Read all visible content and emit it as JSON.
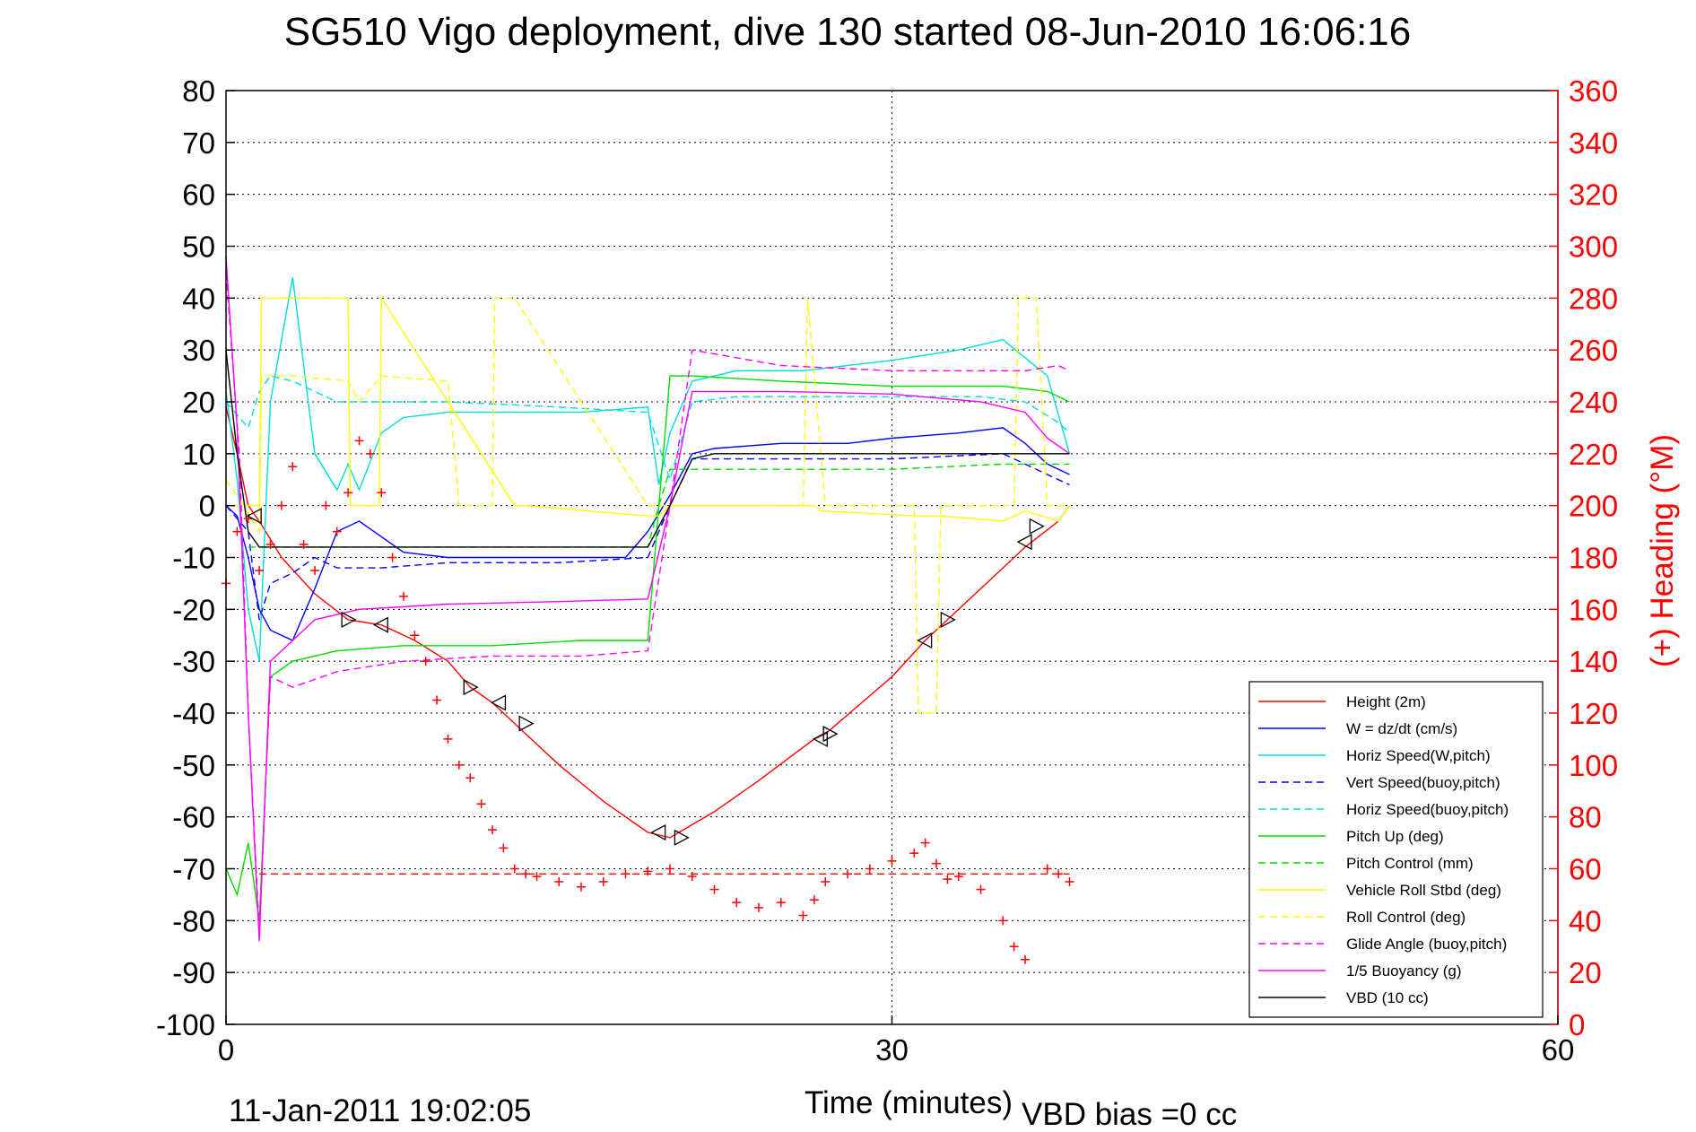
{
  "chart_data": {
    "type": "line",
    "title": "SG510 Vigo deployment, dive 130 started 08-Jun-2010 16:06:16",
    "xlabel": "Time (minutes)",
    "ylabel_right": "(+) Heading (°M)",
    "xlim": [
      0,
      60
    ],
    "ylim_left": [
      -100,
      80
    ],
    "ylim_right": [
      0,
      360
    ],
    "x_ticks": [
      "0",
      "30",
      "60"
    ],
    "y_ticks_left": [
      "80",
      "70",
      "60",
      "50",
      "40",
      "30",
      "20",
      "10",
      "0",
      "-10",
      "-20",
      "-30",
      "-40",
      "-50",
      "-60",
      "-70",
      "-80",
      "-90",
      "-100"
    ],
    "y_ticks_right": [
      "360",
      "340",
      "320",
      "300",
      "280",
      "260",
      "240",
      "220",
      "200",
      "180",
      "160",
      "140",
      "120",
      "100",
      "80",
      "60",
      "40",
      "20",
      "0"
    ],
    "grid": "dotted",
    "legend_position": "bottom-right",
    "footer_left": "11-Jan-2011 19:02:05",
    "footer_right": "VBD bias =0 cc",
    "series": [
      {
        "name": "Height (2m)",
        "color": "#ff0000",
        "dash": "solid",
        "axis": "left",
        "x": [
          0,
          0.5,
          1.0,
          1.5,
          2.5,
          4,
          5.5,
          7,
          8.5,
          10,
          11,
          12,
          13,
          15,
          17,
          19,
          20,
          22,
          24,
          26.5,
          27,
          30,
          31.5,
          32.5,
          35,
          36,
          37.5,
          38
        ],
        "y": [
          19,
          10,
          0,
          -3,
          -10,
          -17,
          -22,
          -23,
          -26,
          -30,
          -35,
          -38,
          -42,
          -50,
          -57,
          -63,
          -64,
          -59,
          -53,
          -45,
          -44,
          -33,
          -26,
          -22,
          -12,
          -8,
          -3,
          0
        ]
      },
      {
        "name": "W = dz/dt (cm/s)",
        "color": "#0000ff",
        "dash": "solid",
        "axis": "left",
        "x": [
          0,
          0.5,
          1.0,
          1.5,
          2,
          3,
          4,
          5,
          6,
          8,
          10,
          12,
          15,
          18,
          19,
          20,
          21,
          22,
          25,
          28,
          30,
          33,
          35,
          36,
          37,
          38
        ],
        "y": [
          0,
          -2,
          -10,
          -20,
          -24,
          -26,
          -16,
          -5,
          -3,
          -9,
          -10,
          -10,
          -10,
          -10,
          -5,
          2,
          10,
          11,
          12,
          12,
          13,
          14,
          15,
          12,
          8,
          6
        ]
      },
      {
        "name": "Horiz Speed(W,pitch)",
        "color": "#00dddd",
        "dash": "solid",
        "axis": "left",
        "x": [
          0,
          0.5,
          1.0,
          1.5,
          2,
          3,
          4,
          5,
          5.5,
          6,
          7,
          8,
          10,
          13,
          16,
          19,
          19.5,
          20,
          21,
          23,
          26,
          30,
          33,
          35,
          37,
          38
        ],
        "y": [
          22,
          5,
          -20,
          -30,
          20,
          44,
          10,
          3,
          8,
          3,
          14,
          17,
          18,
          18,
          18,
          19,
          4,
          14,
          24,
          26,
          26,
          28,
          30,
          32,
          25,
          10
        ]
      },
      {
        "name": "Vert Speed(buoy,pitch)",
        "color": "#0000ff",
        "dash": "dashed",
        "axis": "left",
        "x": [
          0,
          1,
          1.5,
          2,
          3,
          4,
          5,
          7,
          10,
          15,
          19,
          20,
          21,
          25,
          30,
          35,
          37,
          38
        ],
        "y": [
          0,
          -5,
          -22,
          -15,
          -13,
          -10,
          -12,
          -12,
          -11,
          -11,
          -10,
          0,
          9,
          9,
          9,
          10,
          6,
          4
        ]
      },
      {
        "name": "Horiz Speed(buoy,pitch)",
        "color": "#00dddd",
        "dash": "dashed",
        "axis": "left",
        "x": [
          0,
          1,
          1.5,
          2,
          3,
          4,
          5,
          6,
          10,
          15,
          19,
          20,
          21,
          23,
          30,
          34,
          36,
          37.5,
          38
        ],
        "y": [
          20,
          15,
          22,
          25,
          24,
          22,
          20,
          20,
          20,
          19,
          18,
          5,
          20,
          21,
          21,
          21,
          20,
          16,
          14
        ]
      },
      {
        "name": "Pitch Up (deg)",
        "color": "#00dd00",
        "dash": "solid",
        "axis": "left",
        "x": [
          0,
          0.5,
          1,
          1.5,
          2,
          3,
          5,
          8,
          12,
          16,
          19,
          19.5,
          20,
          21,
          25,
          30,
          35,
          37,
          38
        ],
        "y": [
          -70,
          -75,
          -65,
          -80,
          -33,
          -30,
          -28,
          -27,
          -27,
          -26,
          -26,
          0,
          25,
          25,
          24,
          23,
          23,
          22,
          20
        ]
      },
      {
        "name": "Pitch Control (mm)",
        "color": "#00dd00",
        "dash": "dashed",
        "axis": "left",
        "x": [
          1,
          1.5,
          10,
          19,
          19.5,
          20,
          21,
          30,
          35,
          38
        ],
        "y": [
          -8,
          -8,
          -8,
          -8,
          0,
          7,
          7,
          7,
          8,
          8
        ]
      },
      {
        "name": "Vehicle Roll Stbd (deg)",
        "color": "#ffff00",
        "dash": "solid",
        "axis": "left",
        "x": [
          0,
          1.5,
          1.6,
          5.5,
          5.6,
          6.9,
          7,
          13,
          13.5,
          19,
          19.5,
          20,
          26.5,
          26.8,
          31,
          32,
          32.2,
          35,
          36,
          37.5,
          38
        ],
        "y": [
          0,
          0,
          40,
          40,
          0,
          0,
          40,
          0,
          0,
          -2,
          -2,
          0,
          0,
          -1,
          -2,
          -2,
          -2,
          -3,
          -1,
          -3,
          0
        ]
      },
      {
        "name": "Roll Control (deg)",
        "color": "#ffff00",
        "dash": "dashed",
        "axis": "left",
        "x": [
          0,
          0.8,
          1.5,
          1.6,
          3,
          5.5,
          6,
          7,
          10,
          10.5,
          12,
          12.1,
          13,
          19,
          20,
          26,
          26.2,
          27,
          31,
          31.2,
          32,
          32.2,
          35.5,
          35.7,
          36.5,
          37,
          38
        ],
        "y": [
          5,
          0,
          -5,
          25,
          25,
          24,
          20,
          25,
          24,
          0,
          0,
          40,
          40,
          0,
          0,
          0,
          40,
          0,
          0,
          -40,
          -40,
          0,
          0,
          40,
          40,
          0,
          0
        ]
      },
      {
        "name": "Glide Angle (buoy,pitch)",
        "color": "#ff00ff",
        "dash": "dashed",
        "axis": "left",
        "x": [
          0,
          0.6,
          1,
          1.5,
          2,
          3,
          5,
          8,
          12,
          16,
          19,
          20,
          21,
          25,
          30,
          35,
          36,
          37.5,
          38
        ],
        "y": [
          45,
          10,
          -40,
          -82,
          -33,
          -35,
          -32,
          -30,
          -29,
          -29,
          -28,
          0,
          30,
          27,
          26,
          26,
          26,
          27,
          26
        ]
      },
      {
        "name": "1/5 Buoyancy (g)",
        "color": "#ff00ff",
        "dash": "solid",
        "axis": "left",
        "x": [
          0,
          0.5,
          1,
          1.5,
          2,
          4,
          6,
          10,
          15,
          19,
          20,
          21,
          25,
          30,
          34,
          36,
          37,
          38
        ],
        "y": [
          48,
          15,
          -40,
          -84,
          -30,
          -22,
          -20,
          -19,
          -18.5,
          -18,
          0,
          22,
          22,
          21.5,
          20,
          18,
          13,
          10
        ]
      },
      {
        "name": "VBD (10 cc)",
        "color": "#000000",
        "dash": "solid",
        "axis": "left",
        "x": [
          0,
          0.5,
          1,
          1.5,
          2,
          19,
          20,
          21,
          22,
          30,
          38
        ],
        "y": [
          30,
          10,
          -5,
          -8,
          -8,
          -8,
          0,
          9,
          10,
          10,
          10
        ]
      },
      {
        "name": "Heading",
        "color": "#ff0000",
        "dash": "markers",
        "axis": "right",
        "x": [
          0,
          0.5,
          1,
          1.5,
          2,
          2.5,
          3,
          3.5,
          4,
          4.5,
          5,
          5.5,
          6,
          6.5,
          7,
          7.5,
          8,
          8.5,
          9,
          9.5,
          10,
          10.5,
          11,
          11.5,
          12,
          12.5,
          13,
          13.5,
          14,
          15,
          16,
          17,
          18,
          19,
          20,
          21,
          22,
          23,
          24,
          25,
          26,
          26.5,
          27,
          28,
          29,
          30,
          31,
          31.5,
          32,
          32.5,
          33,
          34,
          35,
          35.5,
          36,
          37,
          37.5,
          38
        ],
        "y": [
          170,
          190,
          195,
          175,
          185,
          200,
          215,
          185,
          175,
          200,
          190,
          205,
          225,
          220,
          205,
          180,
          165,
          150,
          140,
          125,
          110,
          100,
          95,
          85,
          75,
          68,
          60,
          58,
          57,
          55,
          53,
          55,
          58,
          59,
          60,
          57,
          52,
          47,
          45,
          47,
          42,
          48,
          55,
          58,
          60,
          63,
          66,
          70,
          62,
          56,
          57,
          52,
          40,
          30,
          25,
          60,
          58,
          55
        ]
      },
      {
        "name": "Heading ref",
        "color": "#ff0000",
        "dash": "dashed",
        "axis": "left",
        "x": [
          1.5,
          38
        ],
        "y": [
          -71,
          -71
        ]
      }
    ],
    "markers": {
      "name": "Heading ref markers",
      "x": [
        1.3,
        5.5,
        7,
        11,
        12.3,
        13.5,
        19.5,
        20.5,
        26.8,
        27.2,
        31.5,
        32.5,
        36,
        36.5
      ],
      "y": [
        -2,
        -22,
        -23,
        -35,
        -38,
        -42,
        -63,
        -64,
        -45,
        -44,
        -26,
        -22,
        -7,
        -4
      ]
    }
  }
}
